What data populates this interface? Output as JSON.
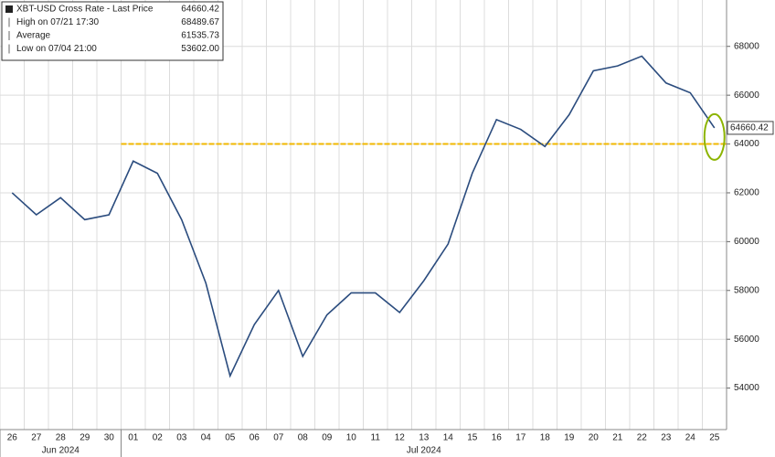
{
  "chart_data": {
    "type": "line",
    "categories": [
      "26",
      "27",
      "28",
      "29",
      "30",
      "01",
      "02",
      "03",
      "04",
      "05",
      "06",
      "07",
      "08",
      "09",
      "10",
      "11",
      "12",
      "13",
      "14",
      "15",
      "16",
      "17",
      "18",
      "19",
      "20",
      "21",
      "22",
      "23",
      "24",
      "25"
    ],
    "month_labels": [
      {
        "label": "Jun 2024",
        "start": 0,
        "end": 4
      },
      {
        "label": "Jul 2024",
        "start": 5,
        "end": 29
      }
    ],
    "series": [
      {
        "name": "XBT-USD Cross Rate - Last Price",
        "color": "#2b4c7e",
        "values": [
          62000,
          61100,
          61800,
          60900,
          61100,
          63300,
          62800,
          60900,
          58300,
          54500,
          56600,
          58000,
          55300,
          57000,
          57900,
          57900,
          57100,
          58400,
          59900,
          62800,
          65000,
          64600,
          63900,
          65200,
          67000,
          67200,
          67600,
          66500,
          66100,
          64660.42
        ]
      }
    ],
    "legend": [
      {
        "name": "XBT-USD Cross Rate - Last Price",
        "value": "64660.42"
      },
      {
        "name": "High on 07/21 17:30",
        "value": "68489.67"
      },
      {
        "name": "Average",
        "value": "61535.73"
      },
      {
        "name": "Low on 07/04 21:00",
        "value": "53602.00"
      }
    ],
    "last_price_label": "64660.42",
    "reference_line": {
      "value": 64000,
      "color": "#f2b800"
    },
    "ylim": [
      52300,
      69900
    ],
    "yticks": [
      54000,
      56000,
      58000,
      60000,
      62000,
      64000,
      66000,
      68000
    ],
    "grid": true
  }
}
